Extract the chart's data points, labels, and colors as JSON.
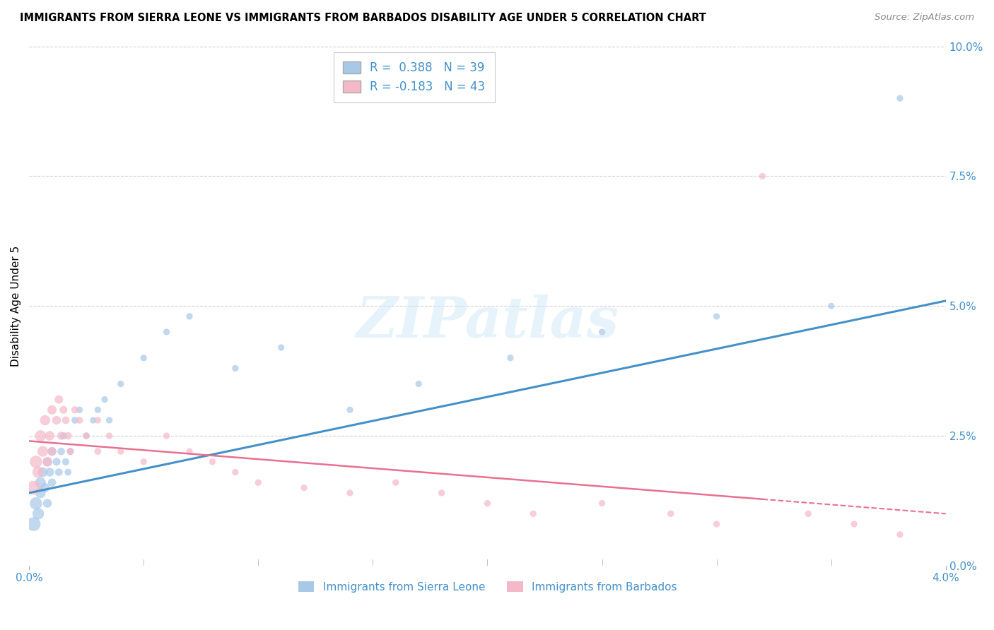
{
  "title": "IMMIGRANTS FROM SIERRA LEONE VS IMMIGRANTS FROM BARBADOS DISABILITY AGE UNDER 5 CORRELATION CHART",
  "source": "Source: ZipAtlas.com",
  "ylabel": "Disability Age Under 5",
  "legend_label_1": "Immigrants from Sierra Leone",
  "legend_label_2": "Immigrants from Barbados",
  "r1": 0.388,
  "n1": 39,
  "r2": -0.183,
  "n2": 43,
  "color1": "#a8c8e8",
  "color2": "#f4b8c8",
  "line_color1": "#4490c8",
  "line_color2": "#e87090",
  "xlim": [
    0.0,
    0.04
  ],
  "ylim": [
    0.0,
    0.1
  ],
  "ytick_vals": [
    0.0,
    0.025,
    0.05,
    0.075,
    0.1
  ],
  "ytick_labels": [
    "0.0%",
    "2.5%",
    "5.0%",
    "7.5%",
    "10.0%"
  ],
  "xtick_vals": [
    0.0,
    0.04
  ],
  "xtick_labels": [
    "0.0%",
    "4.0%"
  ],
  "watermark": "ZIPatlas",
  "background_color": "#ffffff",
  "grid_color": "#d0d0d8",
  "sierra_leone_x": [
    0.0002,
    0.0003,
    0.0004,
    0.0005,
    0.0005,
    0.0006,
    0.0007,
    0.0008,
    0.0008,
    0.0009,
    0.001,
    0.001,
    0.0012,
    0.0013,
    0.0014,
    0.0015,
    0.0016,
    0.0017,
    0.0018,
    0.002,
    0.0022,
    0.0025,
    0.0028,
    0.003,
    0.0033,
    0.0035,
    0.004,
    0.005,
    0.006,
    0.007,
    0.009,
    0.011,
    0.014,
    0.017,
    0.021,
    0.025,
    0.03,
    0.035,
    0.038
  ],
  "sierra_leone_y": [
    0.008,
    0.012,
    0.01,
    0.016,
    0.014,
    0.018,
    0.015,
    0.02,
    0.012,
    0.018,
    0.022,
    0.016,
    0.02,
    0.018,
    0.022,
    0.025,
    0.02,
    0.018,
    0.022,
    0.028,
    0.03,
    0.025,
    0.028,
    0.03,
    0.032,
    0.028,
    0.035,
    0.04,
    0.045,
    0.048,
    0.038,
    0.042,
    0.03,
    0.035,
    0.04,
    0.045,
    0.048,
    0.05,
    0.09
  ],
  "sierra_leone_sizes": [
    200,
    160,
    140,
    120,
    110,
    100,
    90,
    85,
    80,
    80,
    75,
    70,
    65,
    60,
    60,
    55,
    55,
    50,
    50,
    50,
    45,
    45,
    45,
    45,
    45,
    45,
    45,
    45,
    45,
    45,
    45,
    45,
    45,
    45,
    45,
    45,
    45,
    45,
    45
  ],
  "barbados_x": [
    0.0002,
    0.0003,
    0.0004,
    0.0005,
    0.0006,
    0.0007,
    0.0008,
    0.0009,
    0.001,
    0.001,
    0.0012,
    0.0013,
    0.0014,
    0.0015,
    0.0016,
    0.0017,
    0.0018,
    0.002,
    0.0022,
    0.0025,
    0.003,
    0.003,
    0.0035,
    0.004,
    0.005,
    0.006,
    0.007,
    0.008,
    0.009,
    0.01,
    0.012,
    0.014,
    0.016,
    0.018,
    0.02,
    0.022,
    0.025,
    0.028,
    0.03,
    0.032,
    0.034,
    0.036,
    0.038
  ],
  "barbados_y": [
    0.015,
    0.02,
    0.018,
    0.025,
    0.022,
    0.028,
    0.02,
    0.025,
    0.03,
    0.022,
    0.028,
    0.032,
    0.025,
    0.03,
    0.028,
    0.025,
    0.022,
    0.03,
    0.028,
    0.025,
    0.022,
    0.028,
    0.025,
    0.022,
    0.02,
    0.025,
    0.022,
    0.02,
    0.018,
    0.016,
    0.015,
    0.014,
    0.016,
    0.014,
    0.012,
    0.01,
    0.012,
    0.01,
    0.008,
    0.075,
    0.01,
    0.008,
    0.006
  ],
  "barbados_sizes": [
    200,
    160,
    140,
    130,
    120,
    110,
    100,
    95,
    90,
    85,
    80,
    75,
    70,
    65,
    60,
    60,
    55,
    55,
    50,
    50,
    50,
    45,
    45,
    45,
    45,
    45,
    45,
    45,
    45,
    45,
    45,
    45,
    45,
    45,
    45,
    45,
    45,
    45,
    45,
    45,
    45,
    45,
    45
  ],
  "sl_line_x": [
    0.0,
    0.04
  ],
  "sl_line_y": [
    0.014,
    0.051
  ],
  "bb_line_x": [
    0.0,
    0.04
  ],
  "bb_line_y": [
    0.024,
    0.01
  ]
}
